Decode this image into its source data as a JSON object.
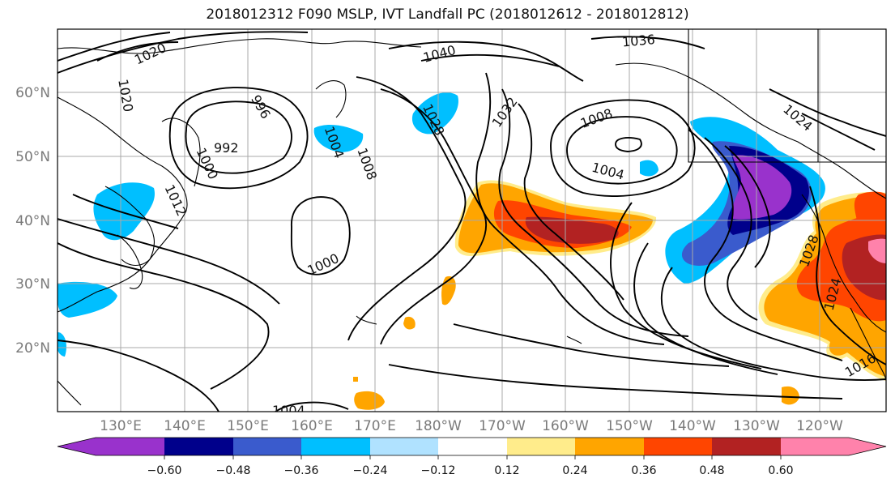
{
  "title": "2018012312 F090 MSLP, IVT Landfall PC (2018012612 - 2018012812)",
  "lat_labels": [
    "60°N",
    "50°N",
    "40°N",
    "30°N",
    "20°N"
  ],
  "lon_labels": [
    "130°E",
    "140°E",
    "150°E",
    "160°E",
    "170°E",
    "180°W",
    "170°W",
    "160°W",
    "150°W",
    "140°W",
    "130°W",
    "120°W"
  ],
  "contour_labels": [
    "1020",
    "1020",
    "996",
    "992",
    "1000",
    "1012",
    "1004",
    "1008",
    "1028",
    "1040",
    "1032",
    "1036",
    "1008",
    "1004",
    "1000",
    "1024",
    "1028",
    "1024",
    "1016",
    "1004"
  ],
  "colorbar": {
    "tick_labels": [
      "−0.60",
      "−0.48",
      "−0.36",
      "−0.24",
      "−0.12",
      "0.12",
      "0.24",
      "0.36",
      "0.48",
      "0.60"
    ],
    "colors": [
      "#9932cc",
      "#00008b",
      "#3a5bcd",
      "#00bfff",
      "#b0e2ff",
      "#ffffff",
      "#ffec8b",
      "#ffa500",
      "#ff4500",
      "#b22222",
      "#ff82ab"
    ]
  }
}
